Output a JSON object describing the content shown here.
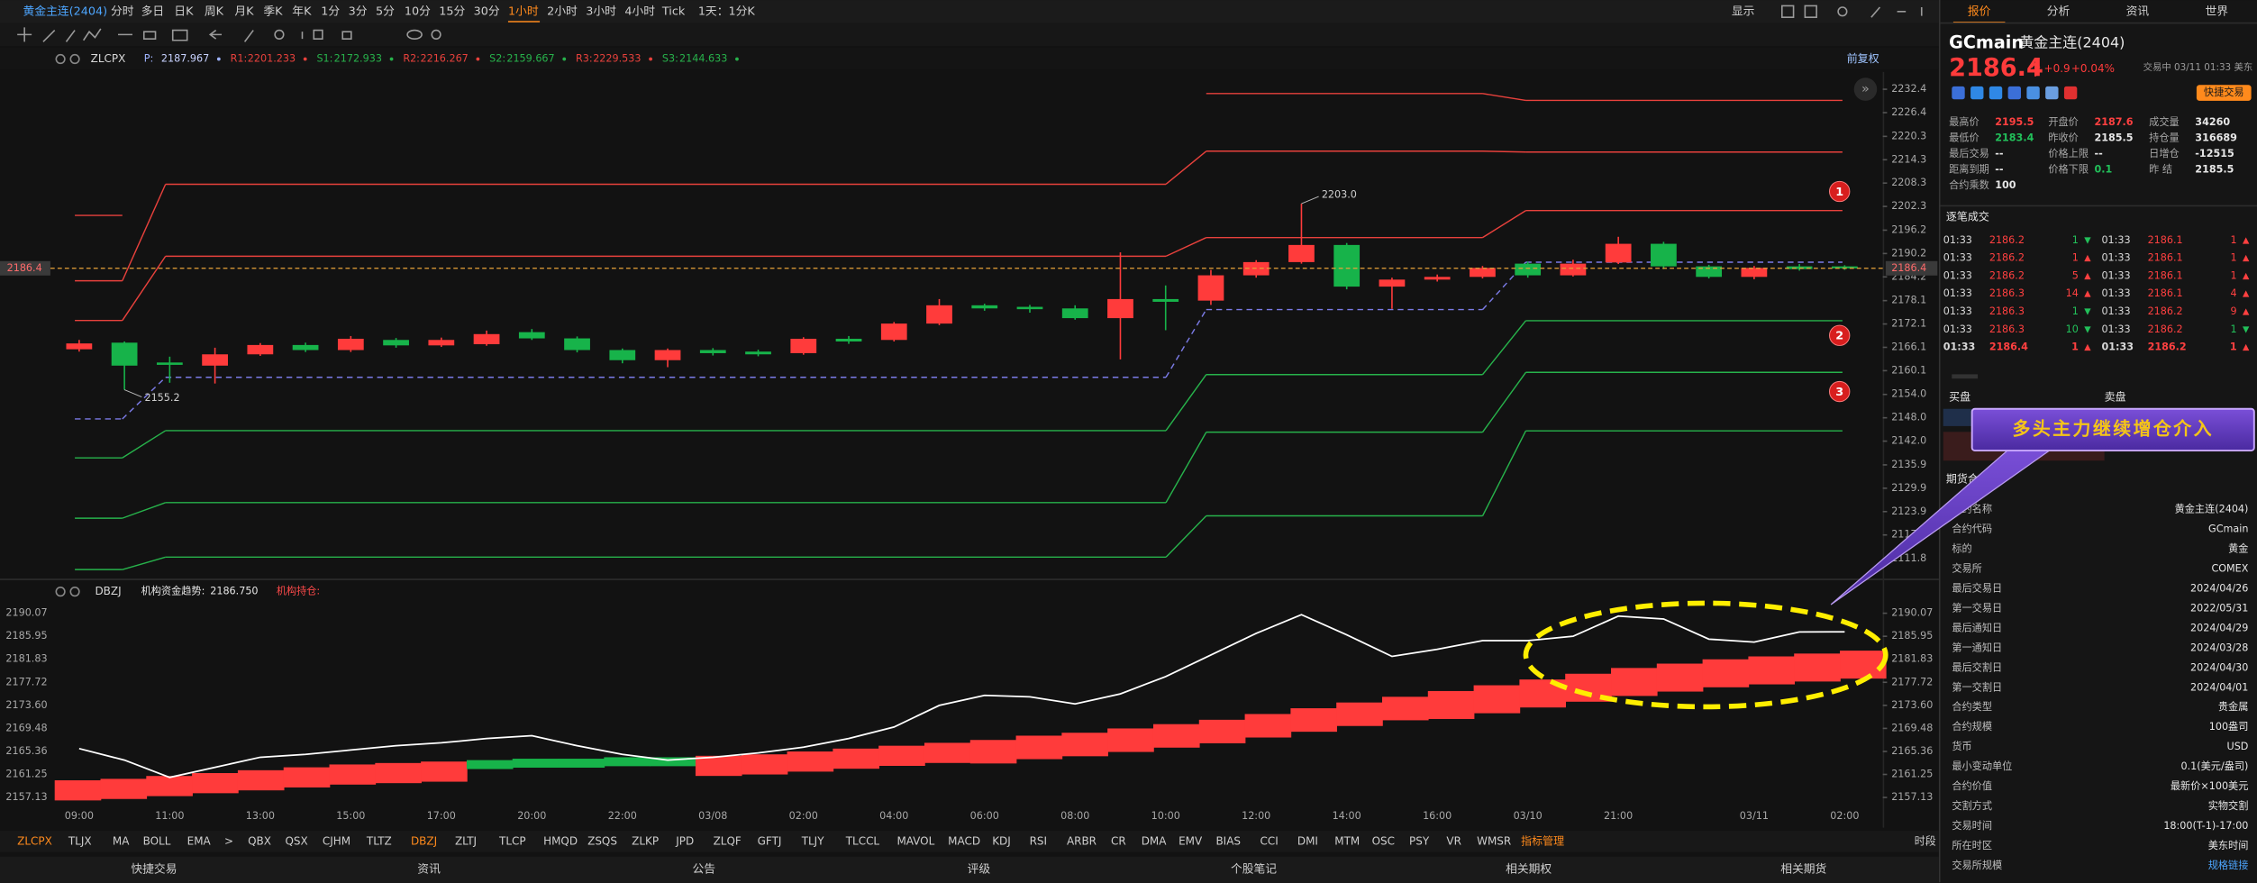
{
  "header": {
    "title": "黄金主连(2404)",
    "periods": [
      "分时",
      "多日",
      "日K",
      "周K",
      "月K",
      "季K",
      "年K",
      "1分",
      "3分",
      "5分",
      "10分",
      "15分",
      "30分",
      "1小时",
      "2小时",
      "3小时",
      "4小时",
      "Tick",
      "1天：1分K"
    ],
    "active_index": 13,
    "display": "显示"
  },
  "main_chart": {
    "type": "candlestick",
    "indicator": "ZLCPX",
    "param_labels": {
      "P": "P:",
      "R1": "R1:",
      "S1": "S1:",
      "R2": "R2:",
      "S2": "S2:",
      "R3": "R3:",
      "S3": "S3:"
    },
    "adjust": "前复权",
    "ylim": [
      2107.4,
      2236.1
    ],
    "yticks": [
      2232.4,
      2226.4,
      2220.3,
      2214.3,
      2208.3,
      2202.3,
      2196.2,
      2190.2,
      2184.2,
      2178.1,
      2172.1,
      2166.1,
      2160.1,
      {
        "value": 2154,
        "label": "2154.0"
      },
      {
        "value": 2148,
        "label": "2148.0"
      },
      {
        "value": 2142,
        "label": "2142.0"
      },
      2135.9,
      2129.9,
      2123.9,
      2117.9,
      2111.8
    ],
    "up_color": "#ff3b3b",
    "down_color": "#17b34a",
    "open": [
      2165.6,
      2167.3,
      2162.2,
      2161.4,
      2164.3,
      2166.7,
      2165.4,
      2168,
      2166.6,
      2166.9,
      2170,
      2168.4,
      2165.4,
      2162.8,
      2165.4,
      2165,
      2164.6,
      2168.3,
      2168,
      2172.2,
      2176.9,
      2176.5,
      2176.1,
      2173.6,
      2178.5,
      2178.1,
      2184.6,
      2188,
      2192.4,
      2181.7,
      2183.5,
      2184.2,
      2187.6,
      2184.6,
      2187.9,
      2192.7,
      2186.9,
      2184.2,
      2186.9,
      2186.9
    ],
    "high": [
      2168,
      2167.6,
      2163.7,
      2166,
      2167.2,
      2167.3,
      2169,
      2168.5,
      2168.6,
      2170.4,
      2170.8,
      2168.9,
      2165.8,
      2165.8,
      2165.9,
      2165.5,
      2168.7,
      2169,
      2172.6,
      2178.5,
      2177.3,
      2177,
      2176.9,
      2190.5,
      2182,
      2186,
      2188.5,
      2203,
      2192.9,
      2184,
      2184.8,
      2187,
      2188.1,
      2188.6,
      2194.5,
      2193.2,
      2187.3,
      2187,
      2187.5,
      2187.2
    ],
    "low": [
      2165,
      2155.2,
      2157,
      2156.8,
      2163.9,
      2164.9,
      2164.9,
      2166,
      2166.2,
      2166.5,
      2168,
      2164.8,
      2162,
      2161,
      2164,
      2163.8,
      2164.2,
      2167,
      2167.6,
      2171.8,
      2175.5,
      2175,
      2173.2,
      2163,
      2170.5,
      2177,
      2184,
      2187.6,
      2181,
      2176,
      2183,
      2183.8,
      2184,
      2184.3,
      2187.5,
      2186.2,
      2183.8,
      2183.6,
      2185.8,
      2186
    ],
    "close": [
      2167.1,
      2161.4,
      2161.6,
      2164.3,
      2166.7,
      2165.4,
      2168.3,
      2166.6,
      2168,
      2169.5,
      2168.4,
      2165.4,
      2162.8,
      2165.4,
      2164.6,
      2164.3,
      2168.3,
      2167.6,
      2172.2,
      2176.9,
      2176.1,
      2175.9,
      2173.6,
      2178.5,
      2177.8,
      2184.6,
      2188,
      2192.4,
      2181.7,
      2183.5,
      2184.2,
      2186.5,
      2184.6,
      2187.6,
      2192.7,
      2186.9,
      2184.2,
      2186.5,
      2186.2,
      2186.4
    ],
    "high_label": "2203.0",
    "low_label": "2155.2",
    "pivot_colors": {
      "R": "#e8413c",
      "P": "#7b7be6",
      "S": "#27b24b"
    },
    "pivots": [
      {
        "R3": 2200.0,
        "R2": 2183.2,
        "R1": 2173.0,
        "P": 2147.7,
        "S1": 2137.7,
        "S2": 2122.2,
        "S3": 2109.0
      },
      {
        "R3": null,
        "R2": 2208.0,
        "R1": 2189.5,
        "P": 2158.4,
        "S1": 2144.7,
        "S2": 2126.2,
        "S3": 2112.2
      },
      {
        "R3": 2231.3,
        "R2": 2216.5,
        "R1": 2194.3,
        "P": 2175.8,
        "S1": 2159.1,
        "S2": 2144.3,
        "S3": 2122.8
      },
      {
        "R3": 2229.533,
        "R2": 2216.267,
        "R1": 2201.233,
        "P": 2187.967,
        "S1": 2172.933,
        "S2": 2159.667,
        "S3": 2144.633
      }
    ],
    "markers": [
      "1",
      "2",
      "3"
    ]
  },
  "lower_chart": {
    "type": "band_line",
    "indicator": "DBZJ",
    "trend_label": "机构资金趋势:",
    "trend_value": "2186.750",
    "holding_label": "机构持仓:",
    "ylim": [
      2155.07,
      2192.13
    ],
    "yticks": [
      2190.07,
      2185.95,
      2181.83,
      2177.72,
      {
        "value": 2173.6,
        "label": "2173.60"
      },
      2169.48,
      2165.36,
      2161.25,
      2157.13
    ],
    "categories": [
      "09:00",
      null,
      "11:00",
      null,
      "13:00",
      null,
      "15:00",
      null,
      "17:00",
      null,
      "20:00",
      null,
      "22:00",
      null,
      "03/08",
      null,
      "02:00",
      null,
      "04:00",
      null,
      "06:00",
      null,
      "08:00",
      null,
      "10:00",
      null,
      "12:00",
      null,
      "14:00",
      null,
      "16:00",
      null,
      "03/10",
      null,
      "21:00",
      null,
      null,
      "03/11",
      null,
      "02:00"
    ],
    "line_color": "#ffffff",
    "line": [
      2165.87,
      2163.81,
      2160.72,
      2162.52,
      2164.32,
      2164.84,
      2165.61,
      2166.38,
      2166.9,
      2167.67,
      2168.18,
      2166.38,
      2164.84,
      2163.81,
      2164.32,
      2165.09,
      2166.12,
      2167.67,
      2169.73,
      2173.59,
      2175.39,
      2175.13,
      2173.85,
      2175.65,
      2178.74,
      2182.6,
      2186.47,
      2189.81,
      2186.21,
      2182.35,
      2183.63,
      2185.18,
      2185.18,
      2185.95,
      2189.56,
      2189.04,
      2185.44,
      2184.92,
      2186.72,
      2186.75
    ],
    "band_from": [
      2156.6,
      2156.86,
      2157.37,
      2157.89,
      2158.4,
      2158.92,
      2159.43,
      2159.69,
      2159.95,
      2163.81,
      2164.06,
      2164.06,
      2164.32,
      2164.32,
      2160.98,
      2161.24,
      2161.75,
      2162.27,
      2162.78,
      2163.3,
      2163.21,
      2163.98,
      2164.5,
      2165.27,
      2166.04,
      2166.82,
      2167.85,
      2168.88,
      2169.91,
      2170.93,
      2171.16,
      2172.19,
      2173.22,
      2174.25,
      2175.28,
      2176.06,
      2176.83,
      2177.35,
      2177.86,
      2178.38
    ],
    "band_to": [
      2160.2,
      2160.46,
      2160.97,
      2161.49,
      2162,
      2162.52,
      2163.03,
      2163.29,
      2163.55,
      2162.21,
      2162.46,
      2162.46,
      2162.72,
      2162.72,
      2164.58,
      2164.84,
      2165.35,
      2165.87,
      2166.38,
      2166.9,
      2167.41,
      2168.18,
      2168.7,
      2169.47,
      2170.24,
      2171.02,
      2172.05,
      2173.08,
      2174.11,
      2175.13,
      2176.16,
      2177.19,
      2178.22,
      2179.25,
      2180.28,
      2181.06,
      2181.83,
      2182.35,
      2182.86,
      2183.38
    ],
    "up_color": "#ff3b3b",
    "down_color": "#17b34a"
  },
  "callout": "多头主力继续增仓介入",
  "indicator_bar": {
    "items": [
      "ZLCPX",
      "TLJX",
      "MA",
      "BOLL",
      "EMA",
      ">",
      "QBX",
      "QSX",
      "CJHM",
      "TLTZ",
      "DBZJ",
      "ZLTJ",
      "TLCP",
      "HMQD",
      "ZSQS",
      "ZLKP",
      "JPD",
      "ZLQF",
      "GFTJ",
      "TLJY",
      "TLCCL",
      "MAVOL",
      "MACD",
      "KDJ",
      "RSI",
      "ARBR",
      "CR",
      "DMA",
      "EMV",
      "BIAS",
      "CCI",
      "DMI",
      "MTM",
      "OSC",
      "PSY",
      "VR",
      "WMSR",
      "指标管理"
    ],
    "highlight": [
      0,
      10,
      37
    ],
    "right": "时段"
  },
  "bottom_tabs": [
    "快捷交易",
    "资讯",
    "公告",
    "评级",
    "个股笔记",
    "相关期权",
    "相关期货"
  ],
  "panel": {
    "tabs": [
      "报价",
      "分析",
      "资讯",
      "世界"
    ],
    "active_tab": 0,
    "code": "GCmain",
    "name": "黄金主连(2404)",
    "price": 2186.4,
    "change": "+0.9",
    "change_pct": "+0.04%",
    "status": "交易中 03/11 01:33 美东",
    "quick_trade": "快捷交易",
    "stats": [
      [
        {
          "label": "最高价",
          "value": 2195.5,
          "tone": "up"
        },
        {
          "label": "开盘价",
          "value": 2187.6,
          "tone": "up"
        },
        {
          "label": "成交量",
          "value": 34260,
          "tone": "plain"
        }
      ],
      [
        {
          "label": "最低价",
          "value": 2183.4,
          "tone": "down"
        },
        {
          "label": "昨收价",
          "value": 2185.5,
          "tone": "plain"
        },
        {
          "label": "持仓量",
          "value": 316689,
          "tone": "plain"
        }
      ],
      [
        {
          "label": "最后交易",
          "value": "--",
          "tone": "plain"
        },
        {
          "label": "价格上限",
          "value": "--",
          "tone": "plain"
        },
        {
          "label": "日增仓",
          "value": -12515,
          "tone": "plain"
        }
      ],
      [
        {
          "label": "距离到期",
          "value": "--",
          "tone": "plain"
        },
        {
          "label": "价格下限",
          "value": 0.1,
          "tone": "down"
        },
        {
          "label": "昨 结",
          "value": 2185.5,
          "tone": "plain"
        }
      ],
      [
        {
          "label": "合约乘数",
          "value": 100,
          "tone": "plain"
        }
      ]
    ],
    "trades_title": "逐笔成交",
    "trades_left": [
      [
        "01:33",
        2186.2,
        1,
        "▼"
      ],
      [
        "01:33",
        2186.2,
        1,
        "▲"
      ],
      [
        "01:33",
        2186.2,
        5,
        "▲"
      ],
      [
        "01:33",
        2186.3,
        14,
        "▲"
      ],
      [
        "01:33",
        2186.3,
        1,
        "▼"
      ],
      [
        "01:33",
        2186.3,
        10,
        "▼"
      ],
      [
        "01:33",
        2186.4,
        1,
        "▲"
      ]
    ],
    "trades_right": [
      [
        "01:33",
        2186.1,
        1,
        "▲"
      ],
      [
        "01:33",
        2186.1,
        1,
        "▲"
      ],
      [
        "01:33",
        2186.1,
        1,
        "▲"
      ],
      [
        "01:33",
        2186.1,
        4,
        "▲"
      ],
      [
        "01:33",
        2186.2,
        9,
        "▲"
      ],
      [
        "01:33",
        2186.2,
        1,
        "▼"
      ],
      [
        "01:33",
        2186.2,
        1,
        "▲"
      ]
    ],
    "bid": "买盘",
    "ask": "卖盘",
    "contract_title": "期货合约",
    "contract": [
      [
        "合约名称",
        "黄金主连(2404)"
      ],
      [
        "合约代码",
        "GCmain"
      ],
      [
        "标的",
        "黄金"
      ],
      [
        "交易所",
        "COMEX"
      ],
      [
        "最后交易日",
        "2024/04/26"
      ],
      [
        "第一交易日",
        "2022/05/31"
      ],
      [
        "最后通知日",
        "2024/04/29"
      ],
      [
        "第一通知日",
        "2024/03/28"
      ],
      [
        "最后交割日",
        "2024/04/30"
      ],
      [
        "第一交割日",
        "2024/04/01"
      ],
      [
        "合约类型",
        "贵金属"
      ],
      [
        "合约规模",
        "100盎司"
      ],
      [
        "货币",
        "USD"
      ],
      [
        "最小变动单位",
        "0.1(美元/盎司)"
      ],
      [
        "合约价值",
        "最新价×100美元"
      ],
      [
        "交割方式",
        "实物交割"
      ],
      [
        "交易时间",
        "18:00(T-1)-17:00"
      ],
      [
        "所在时区",
        "美东时间"
      ],
      [
        "交易所规模",
        "规格链接"
      ]
    ]
  }
}
